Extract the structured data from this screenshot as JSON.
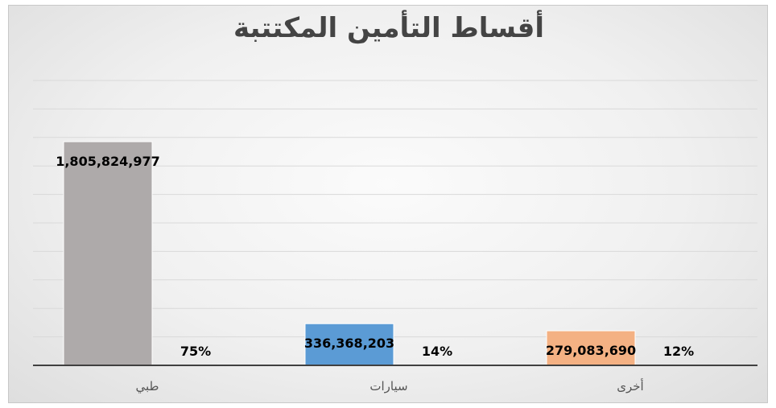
{
  "chart_data": {
    "type": "bar",
    "title": "أقساط التأمين المكتتبة",
    "categories": [
      "طبي",
      "سيارات",
      "أخرى"
    ],
    "values": [
      1805824977,
      336368203,
      279083690
    ],
    "value_labels": [
      "1,805,824,977",
      "336,368,203",
      "279,083,690"
    ],
    "percent_labels": [
      "75%",
      "14%",
      "12%"
    ],
    "colors": [
      "#AEAAAA",
      "#5B9BD5",
      "#F4B183"
    ],
    "ylim": [
      0,
      2300000000
    ],
    "grid": true,
    "legend": "none"
  }
}
